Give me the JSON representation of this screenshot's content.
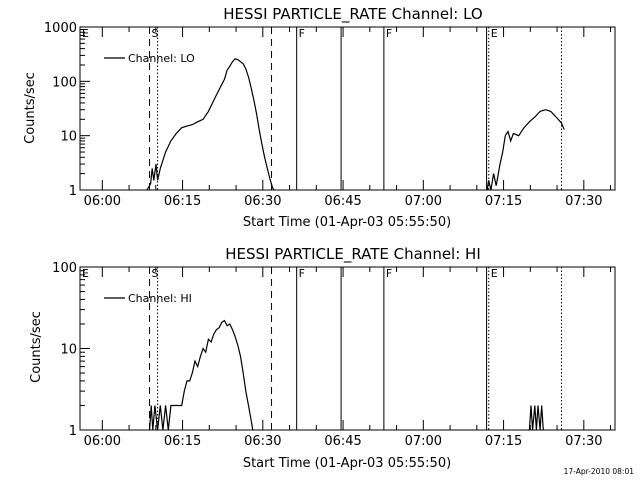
{
  "footer_timestamp": "17-Apr-2010 08:01",
  "chart_data": [
    {
      "type": "line",
      "title": "HESSI PARTICLE_RATE Channel: LO",
      "xlabel": "Start Time (01-Apr-03 05:55:50)",
      "ylabel": "Counts/sec",
      "x_unit": "minutes since 05:55:50",
      "xlim": [
        0,
        100
      ],
      "ylim": [
        1,
        1000
      ],
      "y_scale": "log",
      "x_ticks": [
        {
          "label": "06:00",
          "x": 4.17
        },
        {
          "label": "06:15",
          "x": 19.17
        },
        {
          "label": "06:30",
          "x": 34.17
        },
        {
          "label": "06:45",
          "x": 49.17
        },
        {
          "label": "07:00",
          "x": 64.17
        },
        {
          "label": "07:15",
          "x": 79.17
        },
        {
          "label": "07:30",
          "x": 94.17
        }
      ],
      "y_ticks": [
        {
          "label": "1",
          "y": 1
        },
        {
          "label": "10",
          "y": 10
        },
        {
          "label": "100",
          "y": 100
        },
        {
          "label": "1000",
          "y": 1000
        }
      ],
      "legend": {
        "label": "Channel: LO",
        "position": "top-left"
      },
      "markers": [
        {
          "label": "E",
          "x": 0,
          "style": "none"
        },
        {
          "label": "S",
          "x": 13.0,
          "style": "dashed"
        },
        {
          "label": "",
          "x": 14.5,
          "style": "dotted"
        },
        {
          "label": "",
          "x": 35.8,
          "style": "dashed"
        },
        {
          "label": "F",
          "x": 40.5,
          "style": "solid"
        },
        {
          "label": "",
          "x": 48.8,
          "style": "solid"
        },
        {
          "label": "F",
          "x": 56.8,
          "style": "solid"
        },
        {
          "label": "",
          "x": 76.0,
          "style": "solid"
        },
        {
          "label": "E",
          "x": 76.4,
          "style": "dotted"
        },
        {
          "label": "",
          "x": 90.0,
          "style": "dotted"
        }
      ],
      "series": [
        {
          "segments": [
            [
              [
                12.5,
                1
              ],
              [
                13.2,
                1.3
              ],
              [
                13.5,
                2.5
              ],
              [
                13.8,
                1.5
              ],
              [
                14.2,
                3
              ],
              [
                14.5,
                1.5
              ],
              [
                15.0,
                2.5
              ],
              [
                16.0,
                5
              ],
              [
                17.0,
                8
              ],
              [
                18.0,
                11
              ],
              [
                19.0,
                14
              ],
              [
                20.0,
                15
              ],
              [
                21.0,
                16
              ],
              [
                22.0,
                18
              ],
              [
                23.0,
                20
              ],
              [
                24.0,
                28
              ],
              [
                25.0,
                45
              ],
              [
                26.0,
                70
              ],
              [
                27.0,
                110
              ],
              [
                27.5,
                160
              ],
              [
                28.0,
                190
              ],
              [
                28.5,
                230
              ],
              [
                29.0,
                260
              ],
              [
                29.5,
                250
              ],
              [
                30.0,
                230
              ],
              [
                30.5,
                210
              ],
              [
                31.0,
                170
              ],
              [
                31.5,
                120
              ],
              [
                32.0,
                75
              ],
              [
                32.5,
                45
              ],
              [
                33.0,
                25
              ],
              [
                33.5,
                13
              ],
              [
                34.0,
                7
              ],
              [
                34.5,
                4
              ],
              [
                35.0,
                2.5
              ],
              [
                35.5,
                1.6
              ],
              [
                36.0,
                1.1
              ],
              [
                36.3,
                1
              ]
            ],
            [
              [
                76.1,
                1
              ],
              [
                76.4,
                1.5
              ],
              [
                76.8,
                1
              ],
              [
                77.3,
                2
              ],
              [
                77.8,
                1.2
              ],
              [
                78.5,
                3
              ],
              [
                79.0,
                5
              ],
              [
                79.5,
                10
              ],
              [
                80.0,
                12
              ],
              [
                80.5,
                8
              ],
              [
                81.0,
                11
              ],
              [
                82.0,
                10
              ],
              [
                83.0,
                14
              ],
              [
                84.0,
                18
              ],
              [
                85.0,
                22
              ],
              [
                86.0,
                28
              ],
              [
                87.0,
                30
              ],
              [
                88.0,
                28
              ],
              [
                89.0,
                22
              ],
              [
                90.0,
                17
              ],
              [
                90.5,
                13
              ]
            ]
          ]
        }
      ]
    },
    {
      "type": "line",
      "title": "HESSI PARTICLE_RATE Channel: HI",
      "xlabel": "Start Time (01-Apr-03 05:55:50)",
      "ylabel": "Counts/sec",
      "x_unit": "minutes since 05:55:50",
      "xlim": [
        0,
        100
      ],
      "ylim": [
        1,
        100
      ],
      "y_scale": "log",
      "x_ticks": [
        {
          "label": "06:00",
          "x": 4.17
        },
        {
          "label": "06:15",
          "x": 19.17
        },
        {
          "label": "06:30",
          "x": 34.17
        },
        {
          "label": "06:45",
          "x": 49.17
        },
        {
          "label": "07:00",
          "x": 64.17
        },
        {
          "label": "07:15",
          "x": 79.17
        },
        {
          "label": "07:30",
          "x": 94.17
        }
      ],
      "y_ticks": [
        {
          "label": "1",
          "y": 1
        },
        {
          "label": "10",
          "y": 10
        },
        {
          "label": "100",
          "y": 100
        }
      ],
      "legend": {
        "label": "Channel: HI",
        "position": "top-left"
      },
      "markers": [
        {
          "label": "E",
          "x": 0,
          "style": "none"
        },
        {
          "label": "S",
          "x": 13.0,
          "style": "dashed"
        },
        {
          "label": "",
          "x": 14.5,
          "style": "dotted"
        },
        {
          "label": "",
          "x": 35.8,
          "style": "dashed"
        },
        {
          "label": "F",
          "x": 40.5,
          "style": "solid"
        },
        {
          "label": "",
          "x": 48.8,
          "style": "solid"
        },
        {
          "label": "F",
          "x": 56.8,
          "style": "solid"
        },
        {
          "label": "",
          "x": 76.0,
          "style": "solid"
        },
        {
          "label": "E",
          "x": 76.4,
          "style": "dotted"
        },
        {
          "label": "",
          "x": 90.0,
          "style": "dotted"
        }
      ],
      "series": [
        {
          "segments": [
            [
              [
                13.0,
                1
              ],
              [
                13.3,
                2
              ],
              [
                13.6,
                1
              ],
              [
                14.0,
                2
              ],
              [
                14.5,
                1
              ],
              [
                15.0,
                2
              ],
              [
                15.5,
                1
              ],
              [
                16.0,
                2
              ],
              [
                16.5,
                1
              ],
              [
                17.0,
                2
              ],
              [
                19.0,
                2
              ],
              [
                19.5,
                3
              ],
              [
                20.0,
                4
              ],
              [
                20.5,
                4
              ],
              [
                21.0,
                5
              ],
              [
                21.5,
                7
              ],
              [
                22.0,
                6
              ],
              [
                22.5,
                8
              ],
              [
                23.0,
                10
              ],
              [
                23.5,
                9
              ],
              [
                24.0,
                13
              ],
              [
                24.5,
                12
              ],
              [
                25.0,
                15
              ],
              [
                25.5,
                17
              ],
              [
                26.0,
                18
              ],
              [
                26.5,
                21
              ],
              [
                27.0,
                22
              ],
              [
                27.5,
                19
              ],
              [
                28.0,
                20
              ],
              [
                28.5,
                17
              ],
              [
                29.0,
                14
              ],
              [
                29.5,
                11
              ],
              [
                30.0,
                8
              ],
              [
                30.5,
                5
              ],
              [
                31.0,
                3
              ],
              [
                31.5,
                2
              ],
              [
                32.0,
                1.3
              ],
              [
                32.3,
                1
              ]
            ],
            [
              [
                84.0,
                1
              ],
              [
                84.3,
                2
              ],
              [
                84.6,
                1
              ],
              [
                85.0,
                2
              ],
              [
                85.3,
                1
              ],
              [
                85.6,
                2
              ],
              [
                86.0,
                1
              ],
              [
                86.3,
                2
              ],
              [
                86.6,
                1
              ]
            ]
          ]
        }
      ]
    }
  ]
}
